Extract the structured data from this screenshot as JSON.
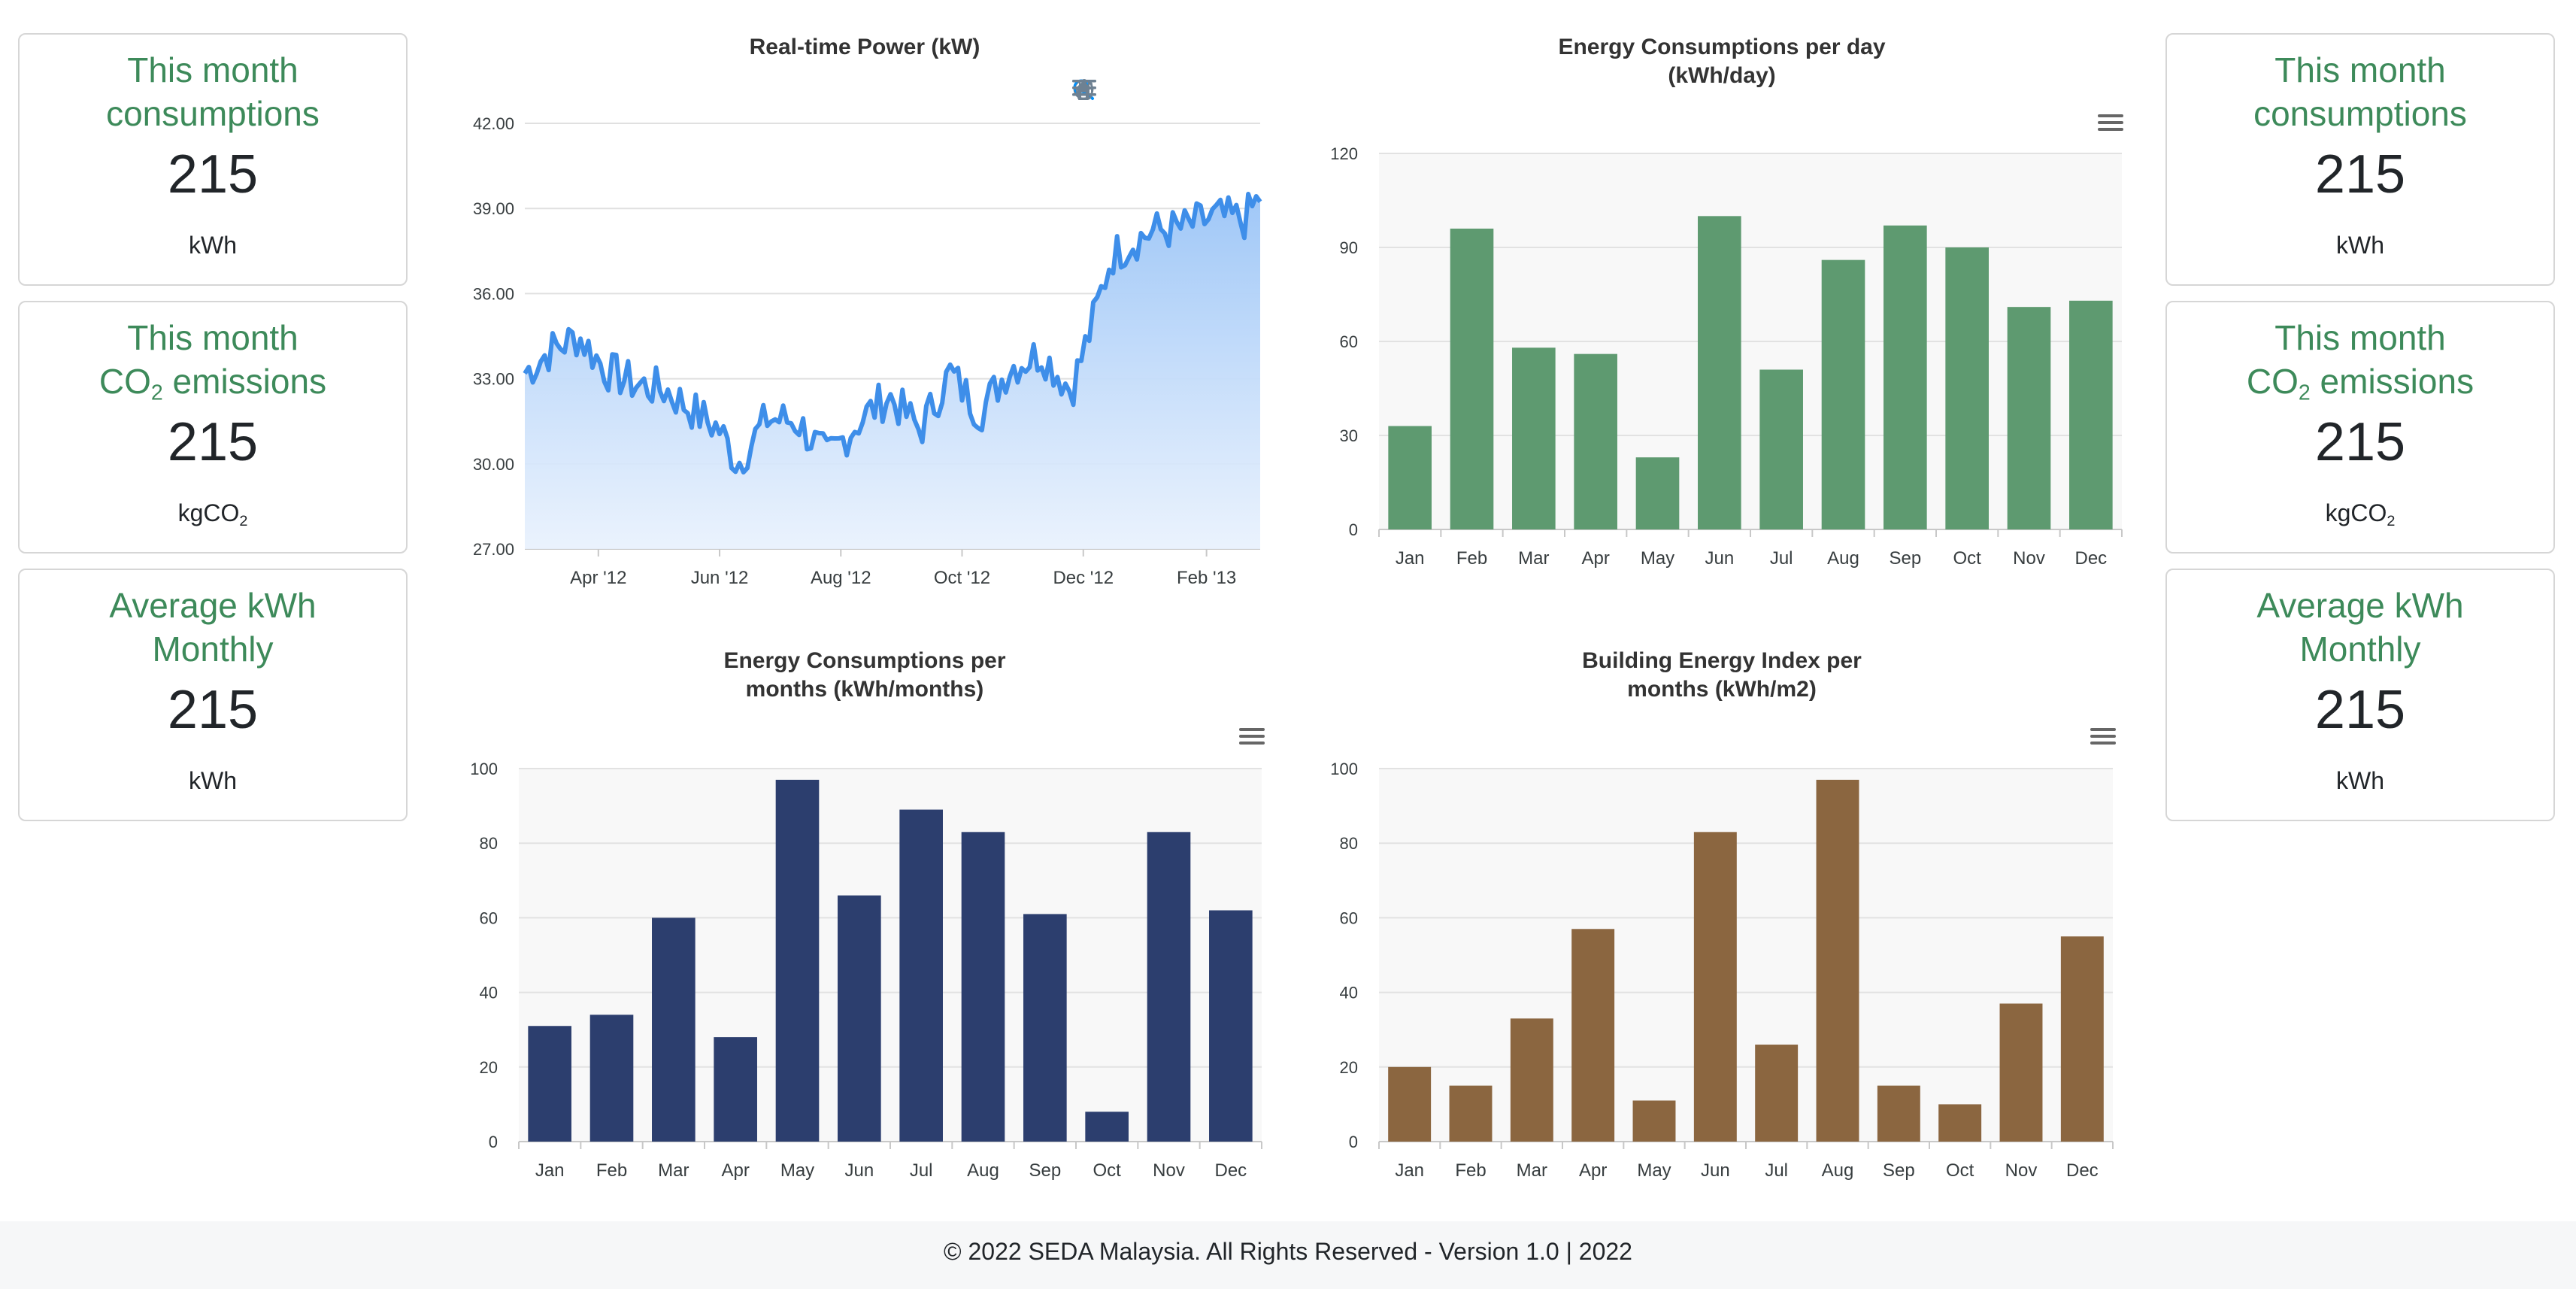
{
  "left_cards": [
    {
      "title": "This month consumptions",
      "value": "215",
      "unit": "kWh"
    },
    {
      "title_prefix": "This month",
      "title_pre": "CO",
      "title_sub": "2",
      "title_post": " emissions",
      "value": "215",
      "unit_pre": "kgCO",
      "unit_sub": "2"
    },
    {
      "title": "Average kWh Monthly",
      "value": "215",
      "unit": "kWh"
    }
  ],
  "right_cards": [
    {
      "title": "This month consumptions",
      "value": "215",
      "unit": "kWh"
    },
    {
      "title_prefix": "This month",
      "title_pre": "CO",
      "title_sub": "2",
      "title_post": " emissions",
      "value": "215",
      "unit_pre": "kgCO",
      "unit_sub": "2"
    },
    {
      "title": "Average kWh Monthly",
      "value": "215",
      "unit": "kWh"
    }
  ],
  "toolbar_icons": [
    "zoom-in-icon",
    "zoom-out-icon",
    "zoom-selection-icon",
    "pan-icon",
    "reset-home-icon",
    "menu-icon"
  ],
  "chart_data": [
    {
      "id": "realtime",
      "type": "area",
      "title": "Real-time Power (kW)",
      "xlabel": "",
      "ylabel": "",
      "ylim": [
        27,
        42
      ],
      "yticks": [
        "42.00",
        "39.00",
        "36.00",
        "33.00",
        "30.00",
        "27.00"
      ],
      "xticks": [
        "Apr '12",
        "Jun '12",
        "Aug '12",
        "Oct '12",
        "Dec '12",
        "Feb '13"
      ],
      "color": "#3e8ee9",
      "fill_top": "#a9cdf8",
      "grid": true,
      "x_start": "2012-02-24",
      "x_end": "2013-02-28",
      "anchors": [
        [
          "2012-02-24",
          33.2
        ],
        [
          "2012-03-08",
          34.0
        ],
        [
          "2012-03-22",
          34.5
        ],
        [
          "2012-04-05",
          33.3
        ],
        [
          "2012-04-20",
          32.8
        ],
        [
          "2012-05-05",
          32.6
        ],
        [
          "2012-05-20",
          31.8
        ],
        [
          "2012-06-01",
          31.2
        ],
        [
          "2012-06-10",
          30.0
        ],
        [
          "2012-06-25",
          31.6
        ],
        [
          "2012-07-10",
          31.5
        ],
        [
          "2012-07-25",
          30.2
        ],
        [
          "2012-08-10",
          31.5
        ],
        [
          "2012-08-25",
          32.4
        ],
        [
          "2012-09-10",
          31.2
        ],
        [
          "2012-09-25",
          33.2
        ],
        [
          "2012-10-10",
          31.8
        ],
        [
          "2012-10-25",
          33.4
        ],
        [
          "2012-11-10",
          33.9
        ],
        [
          "2012-11-25",
          32.6
        ],
        [
          "2012-12-05",
          34.8
        ],
        [
          "2012-12-15",
          37.3
        ],
        [
          "2012-12-25",
          37.8
        ],
        [
          "2013-01-05",
          38.2
        ],
        [
          "2013-01-20",
          38.3
        ],
        [
          "2013-02-05",
          38.7
        ],
        [
          "2013-02-20",
          38.6
        ],
        [
          "2013-02-28",
          39.4
        ]
      ]
    },
    {
      "id": "per_day",
      "type": "bar",
      "title_lines": [
        "Energy Consumptions per day",
        "(kWh/day)"
      ],
      "xlabel": "",
      "ylabel": "",
      "categories": [
        "Jan",
        "Feb",
        "Mar",
        "Apr",
        "May",
        "Jun",
        "Jul",
        "Aug",
        "Sep",
        "Oct",
        "Nov",
        "Dec"
      ],
      "values": [
        33,
        96,
        58,
        56,
        23,
        100,
        51,
        86,
        97,
        90,
        71,
        73
      ],
      "ylim": [
        0,
        120
      ],
      "yticks": [
        0,
        30,
        60,
        90,
        120
      ],
      "color": "#5e9a70",
      "grid": true
    },
    {
      "id": "per_month",
      "type": "bar",
      "title_lines": [
        "Energy Consumptions per",
        "months (kWh/months)"
      ],
      "xlabel": "",
      "ylabel": "",
      "categories": [
        "Jan",
        "Feb",
        "Mar",
        "Apr",
        "May",
        "Jun",
        "Jul",
        "Aug",
        "Sep",
        "Oct",
        "Nov",
        "Dec"
      ],
      "values": [
        31,
        34,
        60,
        28,
        97,
        66,
        89,
        83,
        61,
        8,
        83,
        62
      ],
      "ylim": [
        0,
        100
      ],
      "yticks": [
        0,
        20,
        40,
        60,
        80,
        100
      ],
      "color": "#2c3e6e",
      "grid": true
    },
    {
      "id": "bei",
      "type": "bar",
      "title_lines": [
        "Building Energy Index per",
        "months (kWh/m2)"
      ],
      "xlabel": "",
      "ylabel": "",
      "categories": [
        "Jan",
        "Feb",
        "Mar",
        "Apr",
        "May",
        "Jun",
        "Jul",
        "Aug",
        "Sep",
        "Oct",
        "Nov",
        "Dec"
      ],
      "values": [
        20,
        15,
        33,
        57,
        11,
        83,
        26,
        97,
        15,
        10,
        37,
        55
      ],
      "ylim": [
        0,
        100
      ],
      "yticks": [
        0,
        20,
        40,
        60,
        80,
        100
      ],
      "color": "#8b6640",
      "grid": true
    }
  ],
  "footer": {
    "text": "© 2022 SEDA Malaysia. All Rights Reserved - Version 1.0 | 2022"
  }
}
